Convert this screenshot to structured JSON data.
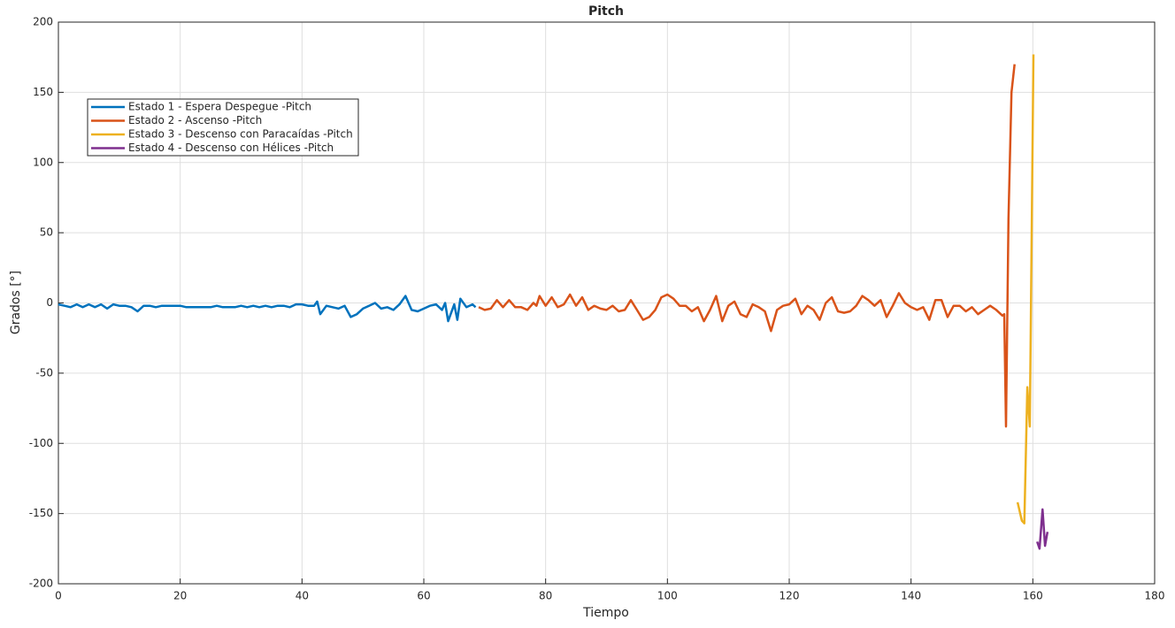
{
  "chart_data": {
    "type": "line",
    "title": "Pitch",
    "xlabel": "Tiempo",
    "ylabel": "Grados [°]",
    "xlim": [
      0,
      180
    ],
    "ylim": [
      -200,
      200
    ],
    "xticks": [
      0,
      20,
      40,
      60,
      80,
      100,
      120,
      140,
      160,
      180
    ],
    "yticks": [
      -200,
      -150,
      -100,
      -50,
      0,
      50,
      100,
      150,
      200
    ],
    "grid": true,
    "legend": "northwest",
    "series": [
      {
        "name": "Estado 1 - Espera Despegue -Pitch",
        "color": "#0072BD",
        "x": [
          0,
          1,
          2,
          3,
          4,
          5,
          6,
          7,
          8,
          9,
          10,
          11,
          12,
          13,
          14,
          15,
          16,
          17,
          18,
          19,
          20,
          21,
          22,
          23,
          24,
          25,
          26,
          27,
          28,
          29,
          30,
          31,
          32,
          33,
          34,
          35,
          36,
          37,
          38,
          39,
          40,
          41,
          42,
          42.5,
          43,
          44,
          45,
          46,
          47,
          48,
          49,
          50,
          51,
          52,
          53,
          54,
          55,
          56,
          57,
          58,
          59,
          60,
          61,
          62,
          63,
          63.5,
          64,
          65,
          65.5,
          66,
          67,
          68,
          68.5
        ],
        "values": [
          -1,
          -2,
          -3,
          -1,
          -3,
          -1,
          -3,
          -1,
          -4,
          -1,
          -2,
          -2,
          -3,
          -6,
          -2,
          -2,
          -3,
          -2,
          -2,
          -2,
          -2,
          -3,
          -3,
          -3,
          -3,
          -3,
          -2,
          -3,
          -3,
          -3,
          -2,
          -3,
          -2,
          -3,
          -2,
          -3,
          -2,
          -2,
          -3,
          -1,
          -1,
          -2,
          -2,
          1,
          -8,
          -2,
          -3,
          -4,
          -2,
          -10,
          -8,
          -4,
          -2,
          0,
          -4,
          -3,
          -5,
          -1,
          5,
          -5,
          -6,
          -4,
          -2,
          -1,
          -5,
          0,
          -13,
          -1,
          -12,
          3,
          -3,
          -1,
          -3
        ]
      },
      {
        "name": "Estado 2 - Ascenso -Pitch",
        "color": "#D95319",
        "x": [
          69,
          70,
          71,
          72,
          73,
          74,
          75,
          76,
          77,
          78,
          78.5,
          79,
          80,
          81,
          82,
          83,
          84,
          85,
          86,
          87,
          88,
          89,
          90,
          91,
          92,
          93,
          94,
          95,
          96,
          97,
          98,
          99,
          100,
          101,
          102,
          103,
          104,
          105,
          106,
          107,
          108,
          109,
          110,
          111,
          112,
          113,
          114,
          115,
          116,
          117,
          118,
          119,
          120,
          121,
          122,
          123,
          124,
          125,
          126,
          127,
          128,
          129,
          130,
          131,
          132,
          133,
          134,
          135,
          136,
          137,
          138,
          139,
          140,
          141,
          142,
          143,
          144,
          145,
          146,
          147,
          148,
          149,
          150,
          151,
          152,
          153,
          154,
          155,
          155.3,
          155.6,
          156,
          156.5,
          157
        ],
        "values": [
          -3,
          -5,
          -4,
          2,
          -3,
          2,
          -3,
          -3,
          -5,
          0,
          -2,
          5,
          -2,
          4,
          -3,
          -1,
          6,
          -2,
          4,
          -5,
          -2,
          -4,
          -5,
          -2,
          -6,
          -5,
          2,
          -5,
          -12,
          -10,
          -5,
          4,
          6,
          3,
          -2,
          -2,
          -6,
          -3,
          -13,
          -5,
          5,
          -13,
          -2,
          1,
          -8,
          -10,
          -1,
          -3,
          -6,
          -20,
          -5,
          -2,
          -1,
          3,
          -8,
          -2,
          -5,
          -12,
          0,
          4,
          -6,
          -7,
          -6,
          -2,
          5,
          2,
          -2,
          2,
          -10,
          -2,
          7,
          0,
          -3,
          -5,
          -3,
          -12,
          2,
          2,
          -10,
          -2,
          -2,
          -6,
          -3,
          -8,
          -5,
          -2,
          -5,
          -9,
          -8,
          -88,
          60,
          150,
          170
        ]
      },
      {
        "name": "Estado 3 - Descenso con Paracaídas -Pitch",
        "color": "#EDB120",
        "x": [
          157.5,
          158.2,
          158.6,
          159.1,
          159.5,
          160.1
        ],
        "values": [
          -142,
          -155,
          -157,
          -60,
          -88,
          177
        ]
      },
      {
        "name": "Estado 4 - Descenso con Hélices -Pitch",
        "color": "#7E2F8E",
        "x": [
          160.7,
          161.1,
          161.6,
          162.0,
          162.4
        ],
        "values": [
          -170,
          -175,
          -147,
          -173,
          -163
        ]
      }
    ]
  }
}
